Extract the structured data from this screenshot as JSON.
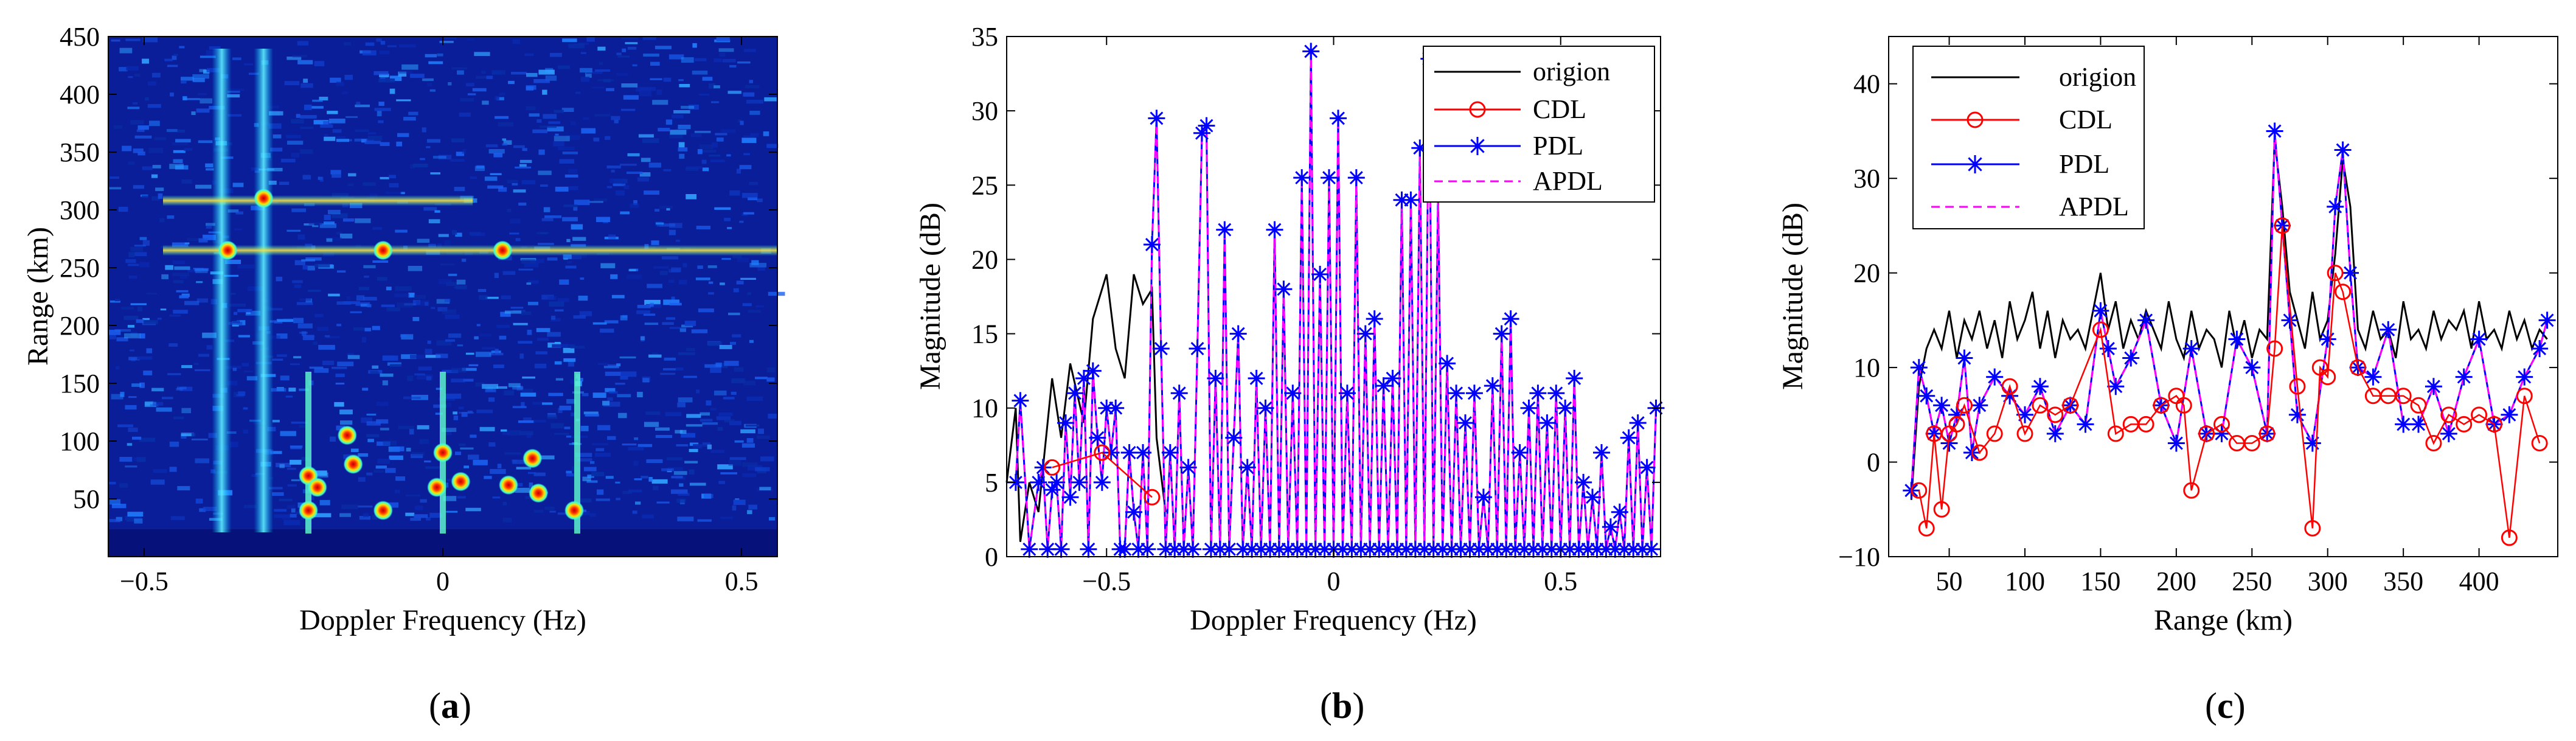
{
  "chart_data": [
    {
      "id": "a",
      "type": "heatmap",
      "caption_letter": "a",
      "xlabel": "Doppler Frequency (Hz)",
      "ylabel": "Range (km)",
      "xlim": [
        -0.56,
        0.56
      ],
      "ylim": [
        0,
        450
      ],
      "xticks": [
        -0.5,
        0,
        0.5
      ],
      "xtick_labels": [
        "−0.5",
        "0",
        "0.5"
      ],
      "yticks": [
        50,
        100,
        150,
        200,
        250,
        300,
        350,
        400,
        450
      ],
      "ytick_labels": [
        "50",
        "100",
        "150",
        "200",
        "250",
        "300",
        "350",
        "400",
        "450"
      ],
      "colormap": "jet",
      "features": {
        "range_lines_km": [
          265,
          308
        ],
        "doppler_bands_hz": [
          -0.37,
          -0.3
        ],
        "bragg_lines_hz": [
          -0.225,
          0.0,
          0.225
        ],
        "hot_spots": [
          {
            "x": -0.225,
            "y": 40
          },
          {
            "x": -0.225,
            "y": 70
          },
          {
            "x": -0.21,
            "y": 60
          },
          {
            "x": -0.16,
            "y": 105
          },
          {
            "x": -0.15,
            "y": 80
          },
          {
            "x": -0.1,
            "y": 40
          },
          {
            "x": -0.01,
            "y": 60
          },
          {
            "x": 0.0,
            "y": 90
          },
          {
            "x": 0.03,
            "y": 65
          },
          {
            "x": 0.11,
            "y": 62
          },
          {
            "x": 0.15,
            "y": 85
          },
          {
            "x": 0.16,
            "y": 55
          },
          {
            "x": 0.22,
            "y": 40
          },
          {
            "x": -0.3,
            "y": 310
          },
          {
            "x": -0.36,
            "y": 265
          },
          {
            "x": -0.1,
            "y": 265
          },
          {
            "x": 0.1,
            "y": 265
          }
        ]
      }
    },
    {
      "id": "b",
      "type": "line",
      "caption_letter": "b",
      "xlabel": "Doppler Frequency (Hz)",
      "ylabel": "Magnitude (dB)",
      "xlim": [
        -0.72,
        0.72
      ],
      "ylim": [
        0,
        35
      ],
      "xticks": [
        -0.5,
        0,
        0.5
      ],
      "xtick_labels": [
        "−0.5",
        "0",
        "0.5"
      ],
      "yticks": [
        0,
        5,
        10,
        15,
        20,
        25,
        30,
        35
      ],
      "ytick_labels": [
        "0",
        "5",
        "10",
        "15",
        "20",
        "25",
        "30",
        "35"
      ],
      "legend_position": "top-right",
      "legend": [
        "origion",
        "CDL",
        "PDL",
        "APDL"
      ],
      "series": [
        {
          "name": "origion",
          "color": "#000000",
          "style": "solid",
          "x": [
            -0.72,
            -0.7,
            -0.69,
            -0.67,
            -0.65,
            -0.62,
            -0.6,
            -0.58,
            -0.55,
            -0.53,
            -0.5,
            -0.48,
            -0.46,
            -0.44,
            -0.42,
            -0.4,
            -0.39,
            -0.37
          ],
          "y": [
            5,
            10,
            1,
            5,
            3,
            12,
            8,
            13,
            9,
            16,
            19,
            14,
            12,
            19,
            17,
            18,
            8,
            3
          ]
        },
        {
          "name": "CDL",
          "color": "#ff0000",
          "style": "solid",
          "marker": "circle",
          "x": [
            -0.62,
            -0.51,
            -0.4
          ],
          "y": [
            6,
            7,
            4
          ]
        },
        {
          "name": "PDL",
          "color": "#0000ff",
          "style": "solid",
          "marker": "star",
          "x": [
            -0.7,
            -0.69,
            -0.67,
            -0.65,
            -0.64,
            -0.63,
            -0.62,
            -0.61,
            -0.6,
            -0.59,
            -0.58,
            -0.57,
            -0.56,
            -0.55,
            -0.54,
            -0.53,
            -0.52,
            -0.51,
            -0.5,
            -0.49,
            -0.48,
            -0.47,
            -0.46,
            -0.45,
            -0.44,
            -0.43,
            -0.42,
            -0.41,
            -0.4,
            -0.39,
            -0.38,
            -0.37,
            -0.36,
            -0.35,
            -0.34,
            -0.33,
            -0.32,
            -0.31,
            -0.3,
            -0.29,
            -0.28,
            -0.27,
            -0.26,
            -0.25,
            -0.24,
            -0.23,
            -0.22,
            -0.21,
            -0.2,
            -0.19,
            -0.18,
            -0.17,
            -0.16,
            -0.15,
            -0.14,
            -0.13,
            -0.12,
            -0.11,
            -0.1,
            -0.09,
            -0.08,
            -0.07,
            -0.06,
            -0.05,
            -0.04,
            -0.03,
            -0.02,
            -0.01,
            0.0,
            0.01,
            0.02,
            0.03,
            0.04,
            0.05,
            0.06,
            0.07,
            0.08,
            0.09,
            0.1,
            0.11,
            0.12,
            0.13,
            0.14,
            0.15,
            0.16,
            0.17,
            0.18,
            0.19,
            0.2,
            0.21,
            0.22,
            0.23,
            0.24,
            0.25,
            0.26,
            0.27,
            0.28,
            0.29,
            0.3,
            0.31,
            0.32,
            0.33,
            0.34,
            0.35,
            0.36,
            0.37,
            0.38,
            0.39,
            0.4,
            0.41,
            0.42,
            0.43,
            0.44,
            0.45,
            0.46,
            0.47,
            0.48,
            0.49,
            0.5,
            0.51,
            0.52,
            0.53,
            0.54,
            0.55,
            0.56,
            0.57,
            0.58,
            0.59,
            0.6,
            0.61,
            0.62,
            0.63,
            0.64,
            0.65,
            0.66,
            0.67,
            0.68,
            0.69,
            0.7,
            0.71
          ],
          "y": [
            5,
            10.5,
            0.5,
            5,
            6,
            0.5,
            4.5,
            5,
            0.5,
            9,
            4,
            11,
            5,
            12,
            0.5,
            12.5,
            8,
            5,
            10,
            7,
            10,
            0.5,
            0.5,
            7,
            3,
            0.5,
            7,
            0.5,
            21,
            29.5,
            14,
            0.5,
            7,
            0.5,
            11,
            0.5,
            6,
            0.5,
            14,
            28.5,
            29,
            0.5,
            12,
            0.5,
            22,
            0.5,
            8,
            15,
            0.5,
            6,
            0.5,
            12,
            0.5,
            10,
            0.5,
            22,
            0.5,
            18,
            0.5,
            11,
            0.5,
            25.5,
            0.5,
            34,
            0.5,
            19,
            0.5,
            25.5,
            0.5,
            29.5,
            0.5,
            11,
            0.5,
            25.5,
            0.5,
            15,
            0.5,
            16,
            0.5,
            11.5,
            0.5,
            12,
            0.5,
            24,
            0.5,
            24,
            0.5,
            27.5,
            0.5,
            33.5,
            0.5,
            24.5,
            0.5,
            13,
            0.5,
            11,
            0.5,
            9,
            0.5,
            11,
            0.5,
            4,
            0.5,
            11.5,
            0.5,
            15,
            0.5,
            16,
            0.5,
            7,
            0.5,
            10,
            0.5,
            11,
            0.5,
            9,
            0.5,
            11,
            0.5,
            10,
            0.5,
            12,
            0.5,
            5,
            0.5,
            4,
            0.5,
            7,
            0.5,
            2,
            0.5,
            3,
            0.5,
            8,
            0.5,
            9,
            0.5,
            6,
            0.5,
            10
          ]
        },
        {
          "name": "APDL",
          "color": "#ff00ff",
          "style": "dashed",
          "marker": "none"
        }
      ]
    },
    {
      "id": "c",
      "type": "line",
      "caption_letter": "c",
      "xlabel": "Range (km)",
      "ylabel": "Magnitude (dB)",
      "xlim": [
        10,
        452
      ],
      "ylim": [
        -10,
        45
      ],
      "xticks": [
        50,
        100,
        150,
        200,
        250,
        300,
        350,
        400
      ],
      "xtick_labels": [
        "50",
        "100",
        "150",
        "200",
        "250",
        "300",
        "350",
        "400"
      ],
      "yticks": [
        -10,
        0,
        10,
        20,
        30,
        40
      ],
      "ytick_labels": [
        "−10",
        "0",
        "10",
        "20",
        "30",
        "40"
      ],
      "legend_position": "top-left",
      "legend": [
        "origion",
        "CDL",
        "PDL",
        "APDL"
      ],
      "series": [
        {
          "name": "origion",
          "color": "#000000",
          "style": "solid",
          "x": [
            25,
            30,
            35,
            40,
            45,
            50,
            55,
            60,
            65,
            70,
            75,
            80,
            85,
            90,
            95,
            100,
            105,
            110,
            115,
            120,
            125,
            130,
            135,
            140,
            145,
            150,
            155,
            160,
            165,
            170,
            175,
            180,
            185,
            190,
            195,
            200,
            205,
            210,
            215,
            220,
            225,
            230,
            235,
            240,
            245,
            250,
            255,
            260,
            265,
            270,
            275,
            280,
            285,
            290,
            295,
            300,
            305,
            310,
            315,
            320,
            325,
            330,
            335,
            340,
            345,
            350,
            355,
            360,
            365,
            370,
            375,
            380,
            385,
            390,
            395,
            400,
            405,
            410,
            415,
            420,
            425,
            430,
            435,
            440,
            445
          ],
          "y": [
            -4,
            8,
            12,
            14,
            12,
            16,
            11,
            15,
            13,
            16,
            12,
            15,
            11,
            17,
            13,
            15,
            18,
            12,
            16,
            11,
            15,
            13,
            14,
            12,
            16,
            20,
            14,
            17,
            12,
            15,
            13,
            16,
            14,
            12,
            17,
            13,
            11,
            16,
            12,
            14,
            13,
            10,
            16,
            12,
            15,
            11,
            14,
            13,
            34,
            27,
            18,
            15,
            12,
            18,
            13,
            15,
            22,
            32,
            27,
            14,
            12,
            16,
            13,
            14,
            11,
            17,
            13,
            14,
            12,
            16,
            13,
            15,
            14,
            16,
            12,
            17,
            13,
            14,
            12,
            16,
            13,
            15,
            12,
            14,
            13
          ]
        },
        {
          "name": "CDL",
          "color": "#ff0000",
          "style": "solid",
          "marker": "circle",
          "x": [
            30,
            35,
            40,
            45,
            50,
            55,
            60,
            70,
            80,
            90,
            100,
            110,
            120,
            130,
            150,
            160,
            170,
            180,
            190,
            200,
            205,
            210,
            220,
            230,
            240,
            250,
            260,
            265,
            270,
            280,
            290,
            295,
            300,
            305,
            310,
            320,
            330,
            340,
            350,
            360,
            370,
            380,
            390,
            400,
            410,
            420,
            430,
            440
          ],
          "y": [
            -3,
            -7,
            3,
            -5,
            3,
            4,
            6,
            1,
            3,
            8,
            3,
            6,
            5,
            6,
            14,
            3,
            4,
            4,
            6,
            7,
            6,
            -3,
            3,
            4,
            2,
            2,
            3,
            12,
            25,
            8,
            -7,
            10,
            9,
            20,
            18,
            10,
            7,
            7,
            7,
            6,
            2,
            5,
            4,
            5,
            4,
            -8,
            7,
            2
          ]
        },
        {
          "name": "PDL",
          "color": "#0000ff",
          "style": "solid",
          "marker": "star",
          "x": [
            25,
            30,
            35,
            40,
            45,
            50,
            55,
            60,
            65,
            70,
            80,
            90,
            100,
            110,
            120,
            130,
            140,
            150,
            155,
            160,
            170,
            180,
            190,
            200,
            210,
            220,
            230,
            240,
            250,
            260,
            265,
            270,
            275,
            280,
            290,
            300,
            305,
            310,
            315,
            320,
            330,
            340,
            350,
            360,
            370,
            380,
            390,
            400,
            410,
            420,
            430,
            440,
            445
          ],
          "y": [
            -3,
            10,
            7,
            3,
            6,
            2,
            5,
            11,
            1,
            6,
            9,
            7,
            5,
            8,
            3,
            6,
            4,
            16,
            12,
            8,
            11,
            15,
            6,
            2,
            12,
            3,
            3,
            13,
            10,
            3,
            35,
            25,
            15,
            5,
            2,
            13,
            27,
            33,
            20,
            10,
            9,
            14,
            4,
            4,
            8,
            3,
            9,
            13,
            4,
            5,
            9,
            12,
            15
          ]
        },
        {
          "name": "APDL",
          "color": "#ff00ff",
          "style": "dashed",
          "marker": "none"
        }
      ]
    }
  ],
  "captions": [
    "a",
    "b",
    "c"
  ]
}
